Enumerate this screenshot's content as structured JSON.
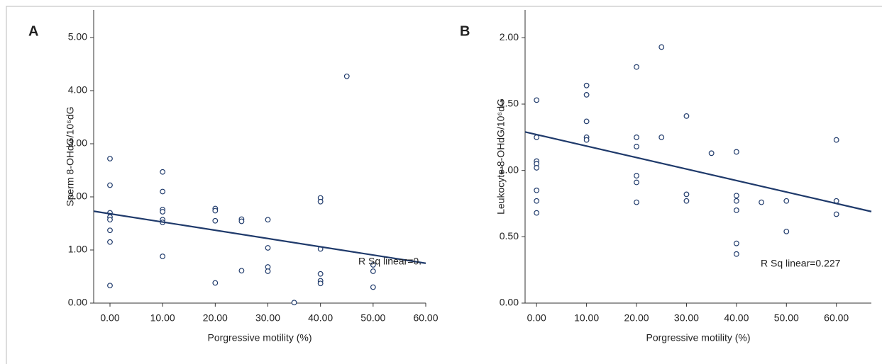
{
  "chart_data": [
    {
      "type": "scatter",
      "panel_label": "A",
      "x_label": "Porgressive motility (%)",
      "y_label": "Sperm 8-OHdG/10⁶dG",
      "annotation": "R Sq linear=0.",
      "xlim": [
        -3.1,
        60
      ],
      "ylim": [
        0,
        5.52
      ],
      "xticks": [
        {
          "value": 0,
          "label": "0.00"
        },
        {
          "value": 10,
          "label": "10.00"
        },
        {
          "value": 20,
          "label": "20.00"
        },
        {
          "value": 30,
          "label": "30.00"
        },
        {
          "value": 40,
          "label": "40.00"
        },
        {
          "value": 50,
          "label": "50.00"
        },
        {
          "value": 60,
          "label": "60.00"
        }
      ],
      "yticks": [
        {
          "value": 0,
          "label": "0.00"
        },
        {
          "value": 1,
          "label": "1.00"
        },
        {
          "value": 2,
          "label": "2.00"
        },
        {
          "value": 3,
          "label": "3.00"
        },
        {
          "value": 4,
          "label": "4.00"
        },
        {
          "value": 5,
          "label": "5.00"
        }
      ],
      "color": "#1f3a6b",
      "x": [
        0,
        0,
        0,
        0,
        0,
        0,
        0,
        0,
        10,
        10,
        10,
        10,
        10,
        10,
        10,
        20,
        20,
        20,
        20,
        25,
        25,
        25,
        30,
        30,
        30,
        30,
        35,
        40,
        40,
        40,
        40,
        40,
        40,
        45,
        50,
        50,
        50
      ],
      "y": [
        2.72,
        2.22,
        1.7,
        1.62,
        1.57,
        1.37,
        1.15,
        0.33,
        2.47,
        2.1,
        1.76,
        1.72,
        1.57,
        1.52,
        0.88,
        1.78,
        1.74,
        1.55,
        0.38,
        1.58,
        1.54,
        0.61,
        1.57,
        1.04,
        0.68,
        0.6,
        0.01,
        1.98,
        1.91,
        1.02,
        0.55,
        0.42,
        0.37,
        4.27,
        0.72,
        0.6,
        0.3
      ],
      "fit_line": {
        "x": [
          -3.1,
          60
        ],
        "y": [
          1.73,
          0.75
        ]
      }
    },
    {
      "type": "scatter",
      "panel_label": "B",
      "x_label": "Porgressive motility (%)",
      "y_label": "Leukocyte 8-OHdG/10⁶dG",
      "annotation": "R Sq linear=0.227",
      "xlim": [
        -2.3,
        67
      ],
      "ylim": [
        0,
        2.21
      ],
      "xticks": [
        {
          "value": 0,
          "label": "0.00"
        },
        {
          "value": 10,
          "label": "10.00"
        },
        {
          "value": 20,
          "label": "20.00"
        },
        {
          "value": 30,
          "label": "30.00"
        },
        {
          "value": 40,
          "label": "40.00"
        },
        {
          "value": 50,
          "label": "50.00"
        },
        {
          "value": 60,
          "label": "60.00"
        }
      ],
      "yticks": [
        {
          "value": 0,
          "label": "0.00"
        },
        {
          "value": 0.5,
          "label": "0.50"
        },
        {
          "value": 1,
          "label": "1.00"
        },
        {
          "value": 1.5,
          "label": "1.50"
        },
        {
          "value": 2,
          "label": "2.00"
        }
      ],
      "color": "#1f3a6b",
      "x": [
        0,
        0,
        0,
        0,
        0,
        0,
        0,
        0,
        10,
        10,
        10,
        10,
        10,
        20,
        20,
        20,
        20,
        20,
        20,
        25,
        25,
        30,
        30,
        30,
        35,
        40,
        40,
        40,
        40,
        40,
        40,
        45,
        50,
        50,
        60,
        60,
        60
      ],
      "y": [
        1.53,
        1.25,
        1.07,
        1.05,
        1.02,
        0.85,
        0.77,
        0.68,
        1.64,
        1.57,
        1.37,
        1.25,
        1.23,
        1.78,
        1.25,
        1.18,
        0.96,
        0.91,
        0.76,
        1.93,
        1.25,
        1.41,
        0.82,
        0.77,
        1.13,
        1.14,
        0.81,
        0.77,
        0.7,
        0.45,
        0.37,
        0.76,
        0.77,
        0.54,
        1.23,
        0.77,
        0.67
      ],
      "fit_line": {
        "x": [
          -2.3,
          67
        ],
        "y": [
          1.29,
          0.69
        ]
      }
    }
  ]
}
